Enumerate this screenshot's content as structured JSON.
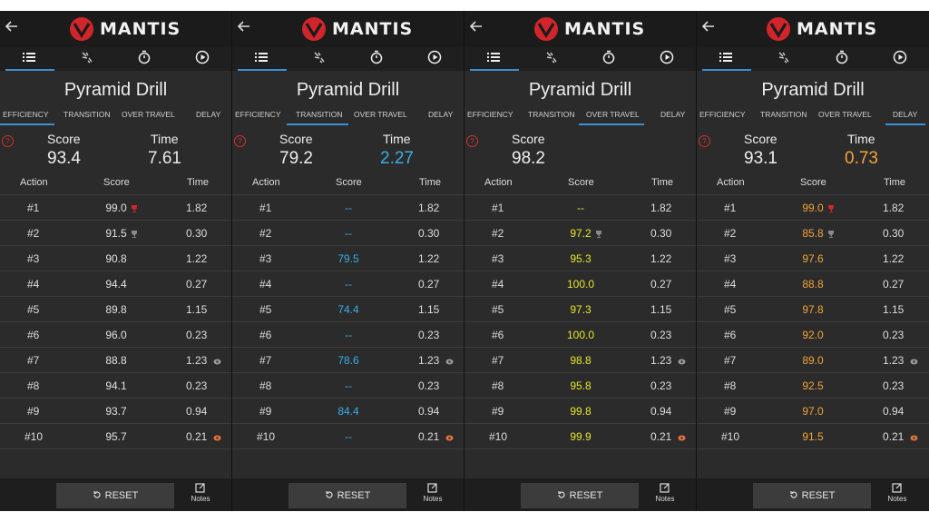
{
  "app": {
    "brand": "MANTIS"
  },
  "colors": {
    "accent": "#3a8fd6",
    "logo_red": "#d0262b",
    "transition_blue": "#3aaee6",
    "overtravel_yellow": "#e6e62a",
    "delay_orange": "#f2a43a",
    "help_red": "#d23030"
  },
  "icons": [
    "back-arrow-icon",
    "list-icon",
    "shot-burst-icon",
    "stopwatch-icon",
    "play-circle-icon",
    "help-icon",
    "trophy-icon",
    "reset-icon",
    "notes-icon"
  ],
  "labels": {
    "drill_title": "Pyramid Drill",
    "subtabs": [
      "EFFICIENCY",
      "TRANSITION",
      "OVER TRAVEL",
      "DELAY"
    ],
    "score": "Score",
    "time": "Time",
    "col_action": "Action",
    "col_score": "Score",
    "col_time": "Time",
    "reset": "RESET",
    "notes": "Notes"
  },
  "actions": [
    "#1",
    "#2",
    "#3",
    "#4",
    "#5",
    "#6",
    "#7",
    "#8",
    "#9",
    "#10"
  ],
  "times": [
    "1.82",
    "0.30",
    "1.22",
    "0.27",
    "1.15",
    "0.23",
    "1.23",
    "0.23",
    "0.94",
    "0.21"
  ],
  "panels": [
    {
      "active_subtab": "EFFICIENCY",
      "score": "93.4",
      "time": "7.61",
      "time_color": "#e8e8e8",
      "score_color": "#e0e0e0",
      "scores": [
        "99.0",
        "91.5",
        "90.8",
        "94.4",
        "89.8",
        "96.0",
        "88.8",
        "94.1",
        "93.7",
        "95.7"
      ]
    },
    {
      "active_subtab": "TRANSITION",
      "score": "79.2",
      "time": "2.27",
      "time_color": "#3aaee6",
      "score_color": "#3aaee6",
      "scores": [
        "--",
        "--",
        "79.5",
        "--",
        "74.4",
        "--",
        "78.6",
        "--",
        "84.4",
        "--"
      ]
    },
    {
      "active_subtab": "OVER TRAVEL",
      "score": "98.2",
      "time": "",
      "time_color": "#e8e8e8",
      "score_color": "#e6e62a",
      "scores": [
        "--",
        "97.2",
        "95.3",
        "100.0",
        "97.3",
        "100.0",
        "98.8",
        "95.8",
        "99.8",
        "99.9"
      ]
    },
    {
      "active_subtab": "DELAY",
      "score": "93.1",
      "time": "0.73",
      "time_color": "#f2a43a",
      "score_color": "#f2a43a",
      "scores": [
        "99.0",
        "85.8",
        "97.6",
        "88.8",
        "97.8",
        "92.0",
        "89.0",
        "92.5",
        "97.0",
        "91.5"
      ]
    }
  ]
}
